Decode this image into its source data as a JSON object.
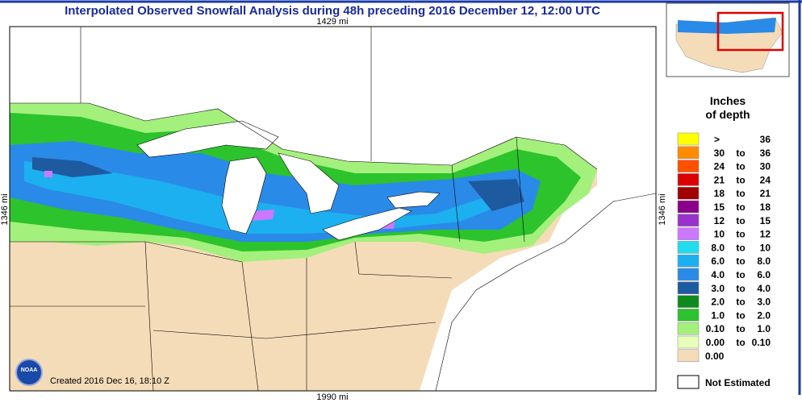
{
  "header": {
    "title": "Interpolated Observed Snowfall Analysis during 48h preceding 2016 December 12, 12:00 UTC"
  },
  "map": {
    "top_distance": "1429 mi",
    "bottom_distance": "1990 mi",
    "side_distance": "1346 mi",
    "created": "Created 2016 Dec 16, 18:10 Z",
    "logo": "NOAA"
  },
  "legend": {
    "title_line1": "Inches",
    "title_line2": "of depth",
    "rows": [
      {
        "color": "#ffff00",
        "text": [
          ">",
          "36"
        ]
      },
      {
        "color": "#ff8c00",
        "text": [
          "30",
          "to",
          "36"
        ]
      },
      {
        "color": "#ff5000",
        "text": [
          "24",
          "to",
          "30"
        ]
      },
      {
        "color": "#dd0000",
        "text": [
          "21",
          "to",
          "24"
        ]
      },
      {
        "color": "#a00000",
        "text": [
          "18",
          "to",
          "21"
        ]
      },
      {
        "color": "#8b008b",
        "text": [
          "15",
          "to",
          "18"
        ]
      },
      {
        "color": "#9932cc",
        "text": [
          "12",
          "to",
          "15"
        ]
      },
      {
        "color": "#cc77ff",
        "text": [
          "10",
          "to",
          "12"
        ]
      },
      {
        "color": "#22ddee",
        "text": [
          "8.0",
          "to",
          "10"
        ]
      },
      {
        "color": "#1cb0f0",
        "text": [
          "6.0",
          "to",
          "8.0"
        ]
      },
      {
        "color": "#2a8ae8",
        "text": [
          "4.0",
          "to",
          "6.0"
        ]
      },
      {
        "color": "#1e5aa0",
        "text": [
          "3.0",
          "to",
          "4.0"
        ]
      },
      {
        "color": "#0f8a1e",
        "text": [
          "2.0",
          "to",
          "3.0"
        ]
      },
      {
        "color": "#2cc32c",
        "text": [
          "1.0",
          "to",
          "2.0"
        ]
      },
      {
        "color": "#a4f07c",
        "text": [
          "0.10",
          "to",
          "1.0"
        ]
      },
      {
        "color": "#e8ffbc",
        "text": [
          "0.00",
          "to",
          "0.10"
        ]
      },
      {
        "color": "#f5dcb9",
        "text": [
          "0.00"
        ]
      }
    ],
    "not_estimated": "Not Estimated"
  }
}
